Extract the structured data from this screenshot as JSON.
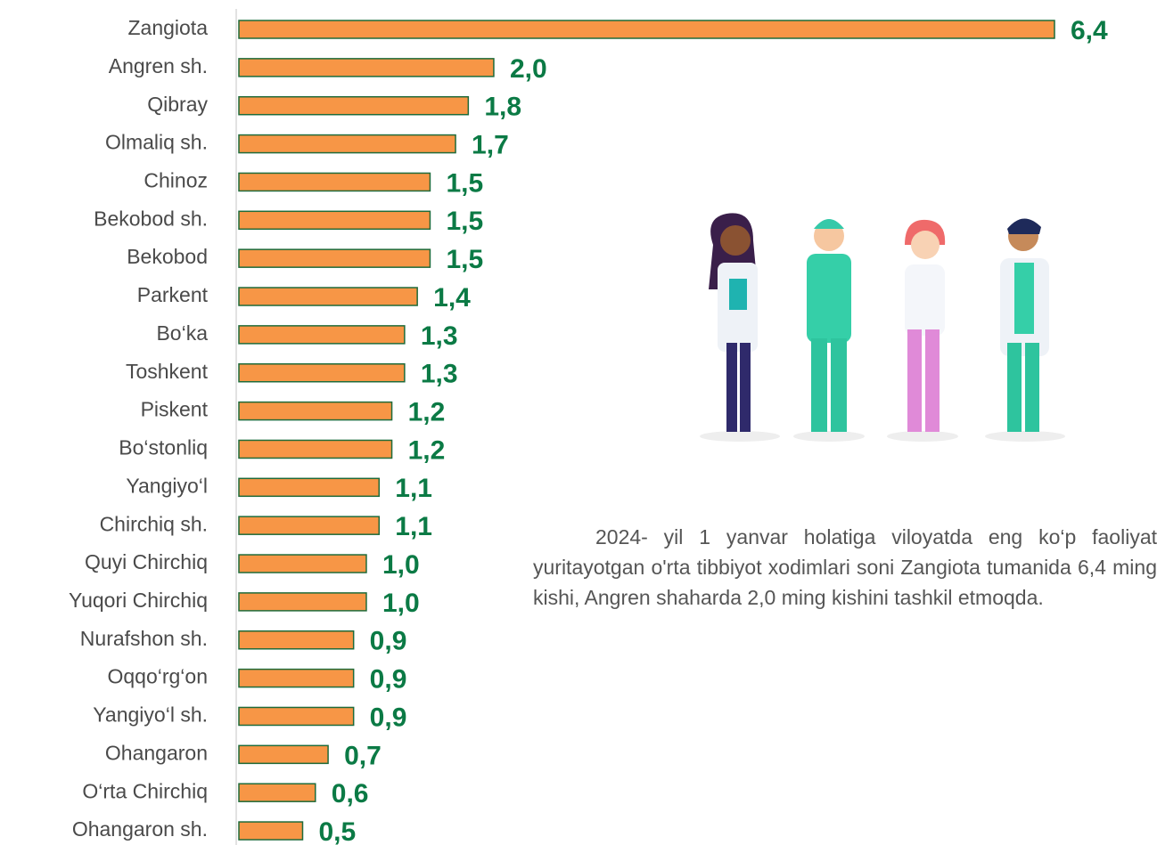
{
  "chart_data": {
    "type": "bar",
    "orientation": "horizontal",
    "categories": [
      "Zangiota",
      "Angren sh.",
      "Qibray",
      "Olmaliq sh.",
      "Chinoz",
      "Bekobod sh.",
      "Bekobod",
      "Parkent",
      "Bo‘ka",
      "Toshkent",
      "Piskent",
      "Bo‘stonliq",
      "Yangiyo‘l",
      "Chirchiq sh.",
      "Quyi Chirchiq",
      "Yuqori Chirchiq",
      "Nurafshon sh.",
      "Oqqo‘rg‘on",
      "Yangiyo‘l sh.",
      "Ohangaron",
      "O‘rta Chirchiq",
      "Ohangaron sh."
    ],
    "values": [
      6.4,
      2.0,
      1.8,
      1.7,
      1.5,
      1.5,
      1.5,
      1.4,
      1.3,
      1.3,
      1.2,
      1.2,
      1.1,
      1.1,
      1.0,
      1.0,
      0.9,
      0.9,
      0.9,
      0.7,
      0.6,
      0.5
    ],
    "value_labels": [
      "6,4",
      "2,0",
      "1,8",
      "1,7",
      "1,5",
      "1,5",
      "1,5",
      "1,4",
      "1,3",
      "1,3",
      "1,2",
      "1,2",
      "1,1",
      "1,1",
      "1,0",
      "1,0",
      "0,9",
      "0,9",
      "0,9",
      "0,7",
      "0,6",
      "0,5"
    ],
    "color": "#f79646",
    "annotation": "2024- yil 1 yanvar holatiga viloyatda eng ko‘p faoliyat yuritayotgan o'rta tibbiyot xodimlari soni Zangiota tumanida 6,4 ming kishi, Angren shaharda 2,0 ming kishini tashkil etmoqda."
  }
}
